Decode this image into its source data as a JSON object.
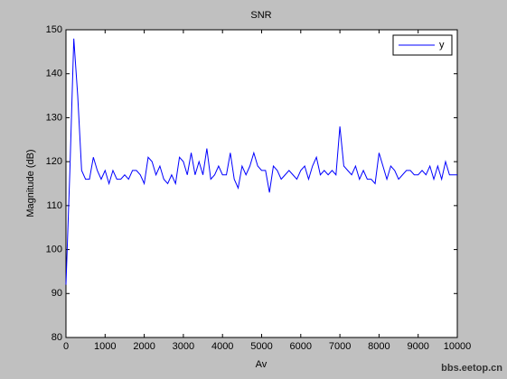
{
  "chart_data": {
    "type": "line",
    "title": "SNR",
    "xlabel": "Av",
    "ylabel": "Magnitude (dB)",
    "x": [
      0,
      100,
      200,
      300,
      400,
      500,
      600,
      700,
      800,
      900,
      1000,
      1100,
      1200,
      1300,
      1400,
      1500,
      1600,
      1700,
      1800,
      1900,
      2000,
      2100,
      2200,
      2300,
      2400,
      2500,
      2600,
      2700,
      2800,
      2900,
      3000,
      3100,
      3200,
      3300,
      3400,
      3500,
      3600,
      3700,
      3800,
      3900,
      4000,
      4100,
      4200,
      4300,
      4400,
      4500,
      4600,
      4700,
      4800,
      4900,
      5000,
      5100,
      5200,
      5300,
      5400,
      5500,
      5600,
      5700,
      5800,
      5900,
      6000,
      6100,
      6200,
      6300,
      6400,
      6500,
      6600,
      6700,
      6800,
      6900,
      7000,
      7100,
      7200,
      7300,
      7400,
      7500,
      7600,
      7700,
      7800,
      7900,
      8000,
      8100,
      8200,
      8300,
      8400,
      8500,
      8600,
      8700,
      8800,
      8900,
      9000,
      9100,
      9200,
      9300,
      9400,
      9500,
      9600,
      9700,
      9800,
      9900,
      10000
    ],
    "series": [
      {
        "name": "y",
        "color": "#0000ff",
        "values": [
          92,
          118,
          148,
          135,
          118,
          116,
          116,
          121,
          118,
          116,
          118,
          115,
          118,
          116,
          116,
          117,
          116,
          118,
          118,
          117,
          115,
          121,
          120,
          117,
          119,
          116,
          115,
          117,
          115,
          121,
          120,
          117,
          122,
          117,
          120,
          117,
          123,
          116,
          117,
          119,
          117,
          117,
          122,
          116,
          114,
          119,
          117,
          119,
          122,
          119,
          118,
          118,
          113,
          119,
          118,
          116,
          117,
          118,
          117,
          116,
          118,
          119,
          116,
          119,
          121,
          117,
          118,
          117,
          118,
          117,
          128,
          119,
          118,
          117,
          119,
          116,
          118,
          116,
          116,
          115,
          122,
          119,
          116,
          119,
          118,
          116,
          117,
          118,
          118,
          117,
          117,
          118,
          117,
          119,
          116,
          119,
          116,
          120,
          117,
          117,
          117
        ]
      }
    ],
    "xlim": [
      0,
      10000
    ],
    "ylim": [
      80,
      150
    ],
    "xticks": [
      0,
      1000,
      2000,
      3000,
      4000,
      5000,
      6000,
      7000,
      8000,
      9000,
      10000
    ],
    "yticks": [
      80,
      90,
      100,
      110,
      120,
      130,
      140,
      150
    ],
    "grid": false,
    "legend": "top-right"
  },
  "watermark": "bbs.eetop.cn"
}
